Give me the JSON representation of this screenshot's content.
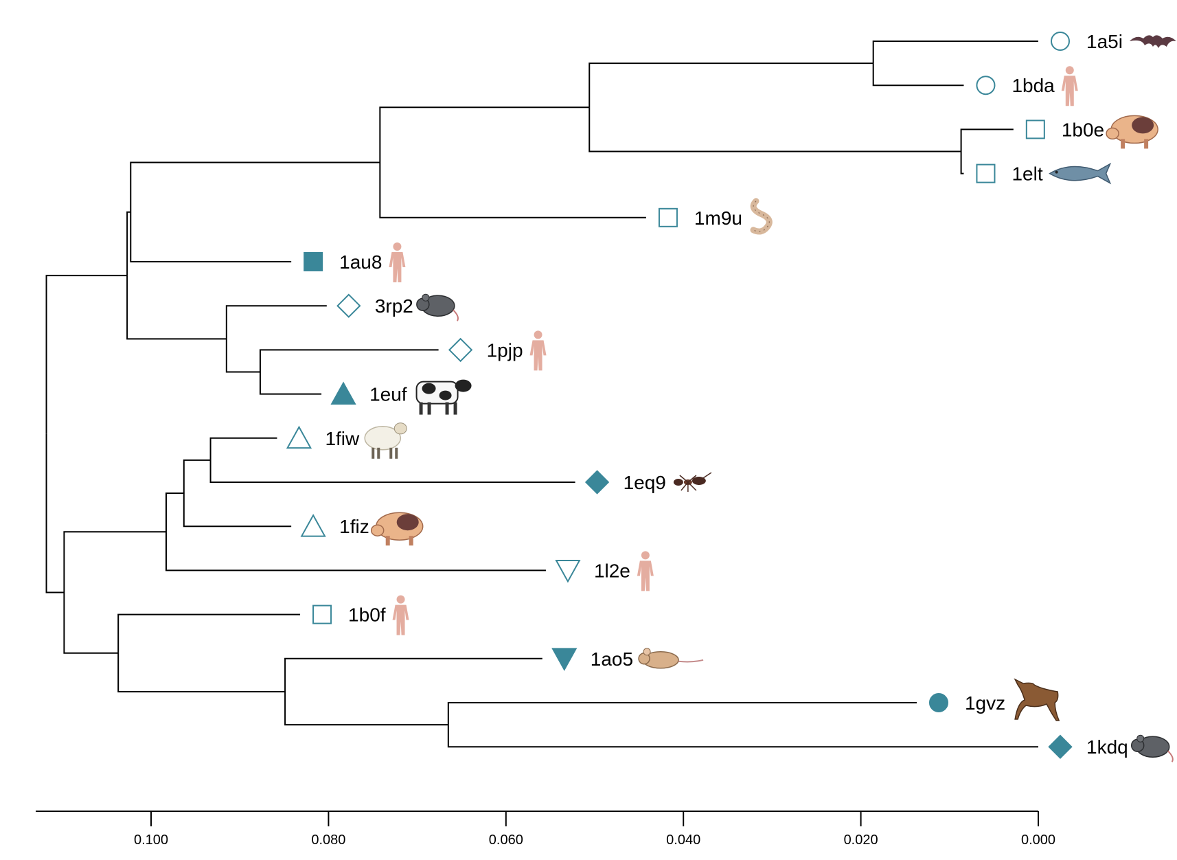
{
  "colors": {
    "marker": "#3a8799",
    "branch": "#000000",
    "skin": "#e4ada0"
  },
  "axis": {
    "range": [
      0.113,
      0.0
    ],
    "ticks": [
      "0.100",
      "0.080",
      "0.060",
      "0.040",
      "0.020",
      "0.000"
    ],
    "tick_values": [
      0.1,
      0.08,
      0.06,
      0.04,
      0.02,
      0.0
    ]
  },
  "leaves": [
    {
      "id": "1a5i",
      "marker": "circle-open",
      "species_icon": "bat-icon",
      "tip": 0.0
    },
    {
      "id": "1bda",
      "marker": "circle-open",
      "species_icon": "human-icon",
      "tip": 0.0084
    },
    {
      "id": "1b0e",
      "marker": "square-open",
      "species_icon": "pig-icon",
      "tip": 0.0028
    },
    {
      "id": "1elt",
      "marker": "square-open",
      "species_icon": "fish-icon",
      "tip": 0.0084
    },
    {
      "id": "1m9u",
      "marker": "square-open",
      "species_icon": "worm-icon",
      "tip": 0.0442
    },
    {
      "id": "1au8",
      "marker": "square-filled",
      "species_icon": "human-icon",
      "tip": 0.0842
    },
    {
      "id": "3rp2",
      "marker": "diamond-open",
      "species_icon": "rat-icon",
      "tip": 0.0802
    },
    {
      "id": "1pjp",
      "marker": "diamond-open",
      "species_icon": "human-icon",
      "tip": 0.0676
    },
    {
      "id": "1euf",
      "marker": "triangle-filled",
      "species_icon": "cow-icon",
      "tip": 0.0808
    },
    {
      "id": "1fiw",
      "marker": "triangle-open",
      "species_icon": "sheep-icon",
      "tip": 0.0858
    },
    {
      "id": "1eq9",
      "marker": "diamond-filled",
      "species_icon": "ant-icon",
      "tip": 0.0522
    },
    {
      "id": "1fiz",
      "marker": "triangle-open",
      "species_icon": "pig-icon",
      "tip": 0.0842
    },
    {
      "id": "1l2e",
      "marker": "triangle-down-open",
      "species_icon": "human-icon",
      "tip": 0.0555
    },
    {
      "id": "1b0f",
      "marker": "square-open",
      "species_icon": "human-icon",
      "tip": 0.0832
    },
    {
      "id": "1ao5",
      "marker": "triangle-down-filled",
      "species_icon": "mouse-icon",
      "tip": 0.0559
    },
    {
      "id": "1gvz",
      "marker": "circle-filled",
      "species_icon": "horse-icon",
      "tip": 0.0137
    },
    {
      "id": "1kdq",
      "marker": "diamond-filled",
      "species_icon": "rat-icon",
      "tip": 0.0
    }
  ],
  "nodes": {
    "n_1a5i_1bda": {
      "height": 0.0186,
      "children": [
        "1a5i",
        "1bda"
      ]
    },
    "n_1b0e_1elt": {
      "height": 0.0087,
      "children": [
        "1b0e",
        "1elt"
      ]
    },
    "n_A": {
      "height": 0.0506,
      "children": [
        "n_1a5i_1bda",
        "n_1b0e_1elt"
      ]
    },
    "n_B": {
      "height": 0.0742,
      "children": [
        "n_A",
        "1m9u"
      ]
    },
    "n_C": {
      "height": 0.1023,
      "children": [
        "n_B",
        "1au8"
      ]
    },
    "n_pjp_euf": {
      "height": 0.0877,
      "children": [
        "1pjp",
        "1euf"
      ]
    },
    "n_D": {
      "height": 0.0915,
      "children": [
        "3rp2",
        "n_pjp_euf"
      ]
    },
    "n_E": {
      "height": 0.1027,
      "children": [
        "n_C",
        "n_D"
      ]
    },
    "n_fiw_eq9": {
      "height": 0.0933,
      "children": [
        "1fiw",
        "1eq9"
      ]
    },
    "n_F": {
      "height": 0.0963,
      "children": [
        "n_fiw_eq9",
        "1fiz"
      ]
    },
    "n_G": {
      "height": 0.0983,
      "children": [
        "n_F",
        "1l2e"
      ]
    },
    "n_gvz_kdq": {
      "height": 0.0665,
      "children": [
        "1gvz",
        "1kdq"
      ]
    },
    "n_H": {
      "height": 0.0849,
      "children": [
        "1ao5",
        "n_gvz_kdq"
      ]
    },
    "n_I": {
      "height": 0.1037,
      "children": [
        "1b0f",
        "n_H"
      ]
    },
    "n_J": {
      "height": 0.1098,
      "children": [
        "n_G",
        "n_I"
      ]
    },
    "root": {
      "height": 0.1118,
      "children": [
        "n_E",
        "n_J"
      ]
    }
  }
}
